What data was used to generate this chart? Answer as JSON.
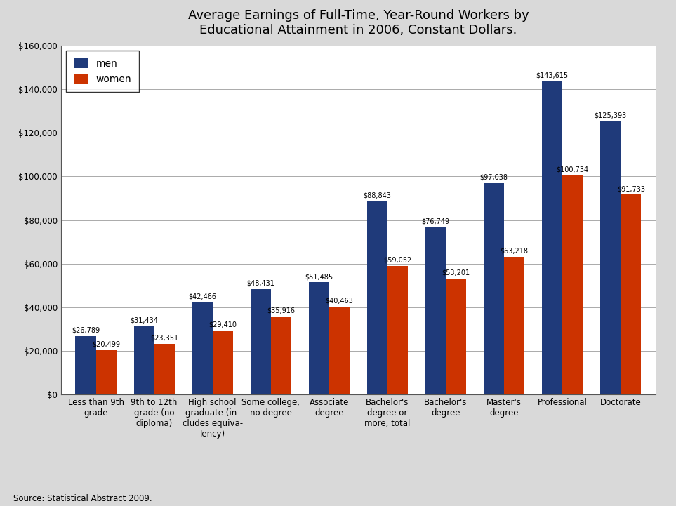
{
  "title": "Average Earnings of Full-Time, Year-Round Workers by\nEducational Attainment in 2006, Constant Dollars.",
  "categories": [
    "Less than 9th\ngrade",
    "9th to 12th\ngrade (no\ndiploma)",
    "High school\ngraduate (in-\ncludes equiva-\nlency)",
    "Some college,\nno degree",
    "Associate\ndegree",
    "Bachelor's\ndegree or\nmore, total",
    "Bachelor's\ndegree",
    "Master's\ndegree",
    "Professional",
    "Doctorate"
  ],
  "men_values": [
    26789,
    31434,
    42466,
    48431,
    51485,
    88843,
    76749,
    97038,
    143615,
    125393
  ],
  "women_values": [
    20499,
    23351,
    29410,
    35916,
    40463,
    59052,
    53201,
    63218,
    100734,
    91733
  ],
  "men_color": "#1f3a7a",
  "women_color": "#cc3300",
  "ylim": [
    0,
    160000
  ],
  "ytick_step": 20000,
  "source_text": "Source: Statistical Abstract 2009.",
  "legend_men": "men",
  "legend_women": "women",
  "bar_width": 0.35,
  "title_fontsize": 13,
  "tick_fontsize": 8.5,
  "label_fontsize": 7,
  "legend_fontsize": 10,
  "fig_bgcolor": "#d9d9d9",
  "plot_bgcolor": "#ffffff"
}
